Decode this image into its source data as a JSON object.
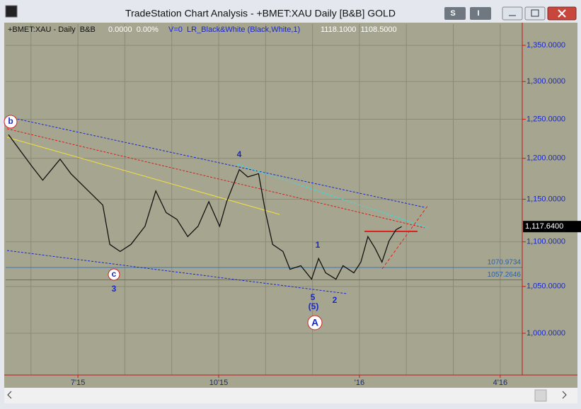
{
  "window": {
    "title": "TradeStation Chart Analysis - +BMET:XAU Daily [B&B] GOLD",
    "buttons": [
      "S",
      "I"
    ]
  },
  "chart_data": {
    "type": "line",
    "header": [
      "+BMET:XAU - Daily  B&B",
      "0.0000  0.00%",
      "V=0  LR_Black&White (Black,White,1)",
      "1118.1000  1108.5000"
    ],
    "x": [
      5.52,
      6.02,
      6.25,
      6.62,
      6.85,
      7.15,
      7.53,
      7.68,
      7.9,
      8.13,
      8.43,
      8.66,
      8.88,
      9.11,
      9.34,
      9.56,
      9.79,
      10.02,
      10.17,
      10.44,
      10.62,
      10.85,
      11.0,
      11.15,
      11.37,
      11.52,
      11.75,
      11.98,
      12.13,
      12.28,
      12.5,
      12.65,
      12.88,
      13.03,
      13.18,
      13.33,
      13.48,
      13.63,
      13.78,
      13.9
    ],
    "values": [
      1230,
      1190,
      1173,
      1199,
      1181,
      1164,
      1143,
      1097,
      1089,
      1097,
      1118,
      1160,
      1134,
      1126,
      1106,
      1118,
      1147,
      1118,
      1147,
      1186,
      1177,
      1181,
      1134,
      1097,
      1089,
      1069,
      1073,
      1058,
      1081,
      1065,
      1058,
      1073,
      1065,
      1077,
      1106,
      1093,
      1077,
      1101,
      1114,
      1117.64
    ],
    "color": "#111111",
    "xlim": [
      5.46,
      16.47
    ],
    "xticks": [
      {
        "value": 7,
        "label": "7'15"
      },
      {
        "value": 10,
        "label": "10'15"
      },
      {
        "value": 13,
        "label": "'16"
      },
      {
        "value": 16,
        "label": "4'16"
      }
    ],
    "xgrid": [
      6,
      7,
      8,
      9,
      10,
      11,
      12,
      13,
      14,
      15,
      16
    ],
    "ylim": [
      957.4,
      1380.3
    ],
    "log_scale": true,
    "yticks": [
      {
        "value": 1000,
        "label": "1,000.0000"
      },
      {
        "value": 1050,
        "label": "1,050.0000"
      },
      {
        "value": 1100,
        "label": "1,100.0000"
      },
      {
        "value": 1150,
        "label": "1,150.0000"
      },
      {
        "value": 1200,
        "label": "1,200.0000"
      },
      {
        "value": 1250,
        "label": "1,250.0000"
      },
      {
        "value": 1300,
        "label": "1,300.0000"
      },
      {
        "value": 1350,
        "label": "1,350.0000"
      }
    ],
    "grid": true,
    "hlines": [
      1070.9734,
      1057.2646
    ],
    "last_price": {
      "value": 1117.64,
      "label": "1,117.6400"
    },
    "wave_labels": [
      "b",
      "c",
      "3",
      "4",
      "1",
      "2",
      "5",
      "(5)",
      "A"
    ]
  }
}
